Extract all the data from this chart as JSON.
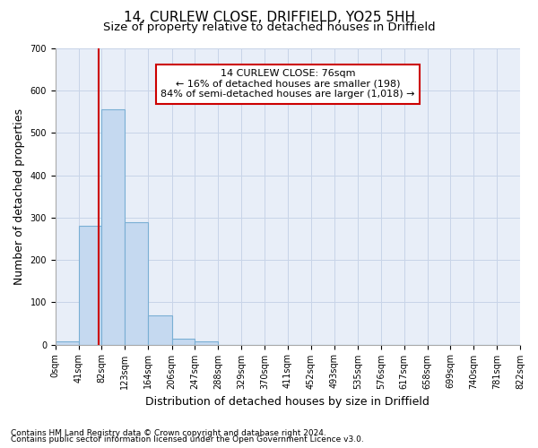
{
  "title1": "14, CURLEW CLOSE, DRIFFIELD, YO25 5HH",
  "title2": "Size of property relative to detached houses in Driffield",
  "xlabel": "Distribution of detached houses by size in Driffield",
  "ylabel": "Number of detached properties",
  "footnote1": "Contains HM Land Registry data © Crown copyright and database right 2024.",
  "footnote2": "Contains public sector information licensed under the Open Government Licence v3.0.",
  "bin_edges": [
    0,
    41,
    82,
    123,
    164,
    206,
    247,
    288,
    329,
    370,
    411,
    452,
    493,
    535,
    576,
    617,
    658,
    699,
    740,
    781,
    822
  ],
  "bar_heights": [
    8,
    280,
    555,
    290,
    68,
    13,
    8,
    0,
    0,
    0,
    0,
    0,
    0,
    0,
    0,
    0,
    0,
    0,
    0,
    0
  ],
  "bar_color": "#c5d9f0",
  "bar_edge_color": "#7aafd4",
  "grid_color": "#c8d4e8",
  "vline_x": 76,
  "vline_color": "#cc0000",
  "annotation_text": "14 CURLEW CLOSE: 76sqm\n← 16% of detached houses are smaller (198)\n84% of semi-detached houses are larger (1,018) →",
  "annotation_box_color": "white",
  "annotation_border_color": "#cc0000",
  "ylim": [
    0,
    700
  ],
  "yticks": [
    0,
    100,
    200,
    300,
    400,
    500,
    600,
    700
  ],
  "bg_color": "#e8eef8",
  "title1_fontsize": 11,
  "title2_fontsize": 9.5,
  "xlabel_fontsize": 9,
  "ylabel_fontsize": 9,
  "tick_fontsize": 7,
  "footnote_fontsize": 6.5
}
